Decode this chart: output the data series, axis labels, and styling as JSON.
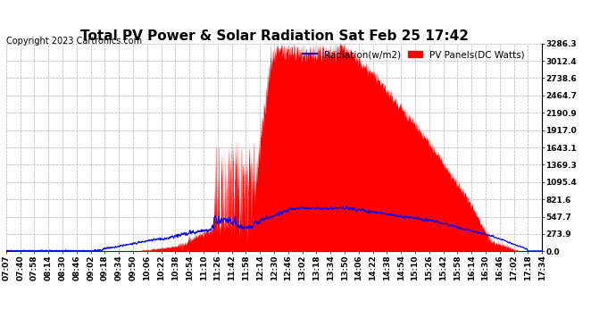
{
  "title": "Total PV Power & Solar Radiation Sat Feb 25 17:42",
  "copyright": "Copyright 2023 Cartronics.com",
  "legend_radiation": "Radiation(w/m2)",
  "legend_pv": "PV Panels(DC Watts)",
  "y_ticks": [
    0.0,
    273.9,
    547.7,
    821.6,
    1095.4,
    1369.3,
    1643.1,
    1917.0,
    2190.9,
    2464.7,
    2738.6,
    3012.4,
    3286.3
  ],
  "y_max": 3286.3,
  "y_min": 0.0,
  "x_labels": [
    "07:07",
    "07:40",
    "07:58",
    "08:14",
    "08:30",
    "08:46",
    "09:02",
    "09:18",
    "09:34",
    "09:50",
    "10:06",
    "10:22",
    "10:38",
    "10:54",
    "11:10",
    "11:26",
    "11:42",
    "11:58",
    "12:14",
    "12:30",
    "12:46",
    "13:02",
    "13:18",
    "13:34",
    "13:50",
    "14:06",
    "14:22",
    "14:38",
    "14:54",
    "15:10",
    "15:26",
    "15:42",
    "15:58",
    "16:14",
    "16:30",
    "16:46",
    "17:02",
    "17:18",
    "17:34"
  ],
  "background_color": "#ffffff",
  "plot_bg_color": "#ffffff",
  "grid_color": "#b0b0b0",
  "pv_color": "#ff0000",
  "radiation_color": "#0000ff",
  "title_fontsize": 11,
  "axis_fontsize": 6.5,
  "copyright_fontsize": 7
}
